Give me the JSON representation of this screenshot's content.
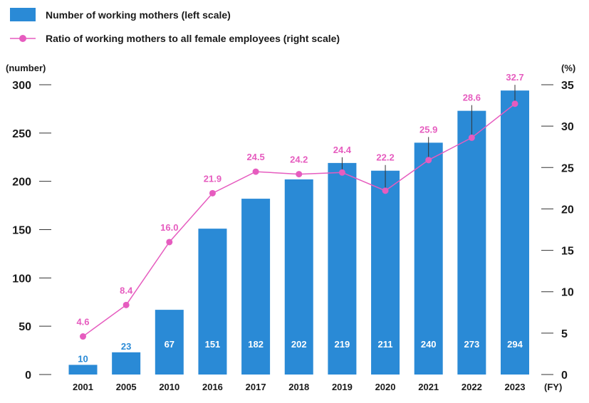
{
  "legend": {
    "bars_label": "Number of working mothers (left scale)",
    "line_label": "Ratio of working mothers to all female employees (right scale)"
  },
  "axes": {
    "left_unit": "(number)",
    "right_unit": "(%)",
    "x_unit": "(FY)"
  },
  "colors": {
    "bar": "#2a8ad6",
    "line": "#e65cbf",
    "bar_text_inside": "#ffffff",
    "axis": "#333333"
  },
  "chart_data": {
    "type": "bar",
    "categories": [
      "2001",
      "2005",
      "2010",
      "2016",
      "2017",
      "2018",
      "2019",
      "2020",
      "2021",
      "2022",
      "2023"
    ],
    "series": [
      {
        "name": "Number of working mothers (left scale)",
        "type": "bar",
        "axis": "left",
        "values": [
          10,
          23,
          67,
          151,
          182,
          202,
          219,
          211,
          240,
          273,
          294
        ]
      },
      {
        "name": "Ratio of working mothers to all female employees (right scale)",
        "type": "line",
        "axis": "right",
        "values": [
          4.6,
          8.4,
          16.0,
          21.9,
          24.5,
          24.2,
          24.4,
          22.2,
          25.9,
          28.6,
          32.7
        ],
        "labels": [
          "4.6",
          "8.4",
          "16.0",
          "21.9",
          "24.5",
          "24.2",
          "24.4",
          "22.2",
          "25.9",
          "28.6",
          "32.7"
        ]
      }
    ],
    "ylim_left": [
      0,
      300
    ],
    "yticks_left": [
      "0",
      "50",
      "100",
      "150",
      "200",
      "250",
      "300"
    ],
    "ylim_right": [
      0,
      35
    ],
    "yticks_right": [
      "0",
      "5",
      "10",
      "15",
      "20",
      "25",
      "30",
      "35"
    ],
    "grid": false,
    "legend_position": "top-left"
  }
}
